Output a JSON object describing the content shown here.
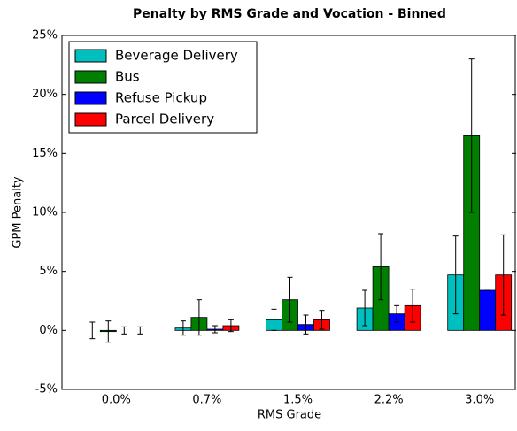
{
  "chart_data": {
    "type": "bar",
    "title": "Penalty by RMS Grade and Vocation - Binned",
    "xlabel": "RMS Grade",
    "ylabel": "GPM Penalty",
    "categories": [
      "0.0%",
      "0.7%",
      "1.5%",
      "2.2%",
      "3.0%"
    ],
    "series": [
      {
        "name": "Beverage Delivery",
        "color": "#00bfbf",
        "values": [
          0.0,
          0.2,
          0.9,
          1.9,
          4.7
        ],
        "errors": [
          0.7,
          0.6,
          0.9,
          1.5,
          3.3
        ]
      },
      {
        "name": "Bus",
        "color": "#007f00",
        "values": [
          -0.1,
          1.1,
          2.6,
          5.4,
          16.5
        ],
        "errors": [
          0.9,
          1.5,
          1.9,
          2.8,
          6.5
        ]
      },
      {
        "name": "Refuse Pickup",
        "color": "#0000ff",
        "values": [
          0.0,
          0.1,
          0.5,
          1.4,
          3.4
        ],
        "errors": [
          0.3,
          0.3,
          0.8,
          0.7,
          0
        ]
      },
      {
        "name": "Parcel Delivery",
        "color": "#ff0000",
        "values": [
          0.0,
          0.4,
          0.9,
          2.1,
          4.7
        ],
        "errors": [
          0.3,
          0.5,
          0.8,
          1.4,
          3.4
        ]
      }
    ],
    "ylim": [
      -5,
      25
    ],
    "yticks": [
      {
        "value": -5,
        "label": "-5%"
      },
      {
        "value": 0,
        "label": "0%"
      },
      {
        "value": 5,
        "label": "5%"
      },
      {
        "value": 10,
        "label": "10%"
      },
      {
        "value": 15,
        "label": "15%"
      },
      {
        "value": 20,
        "label": "20%"
      },
      {
        "value": 25,
        "label": "25%"
      }
    ],
    "legend": "upper left",
    "grid": false
  }
}
